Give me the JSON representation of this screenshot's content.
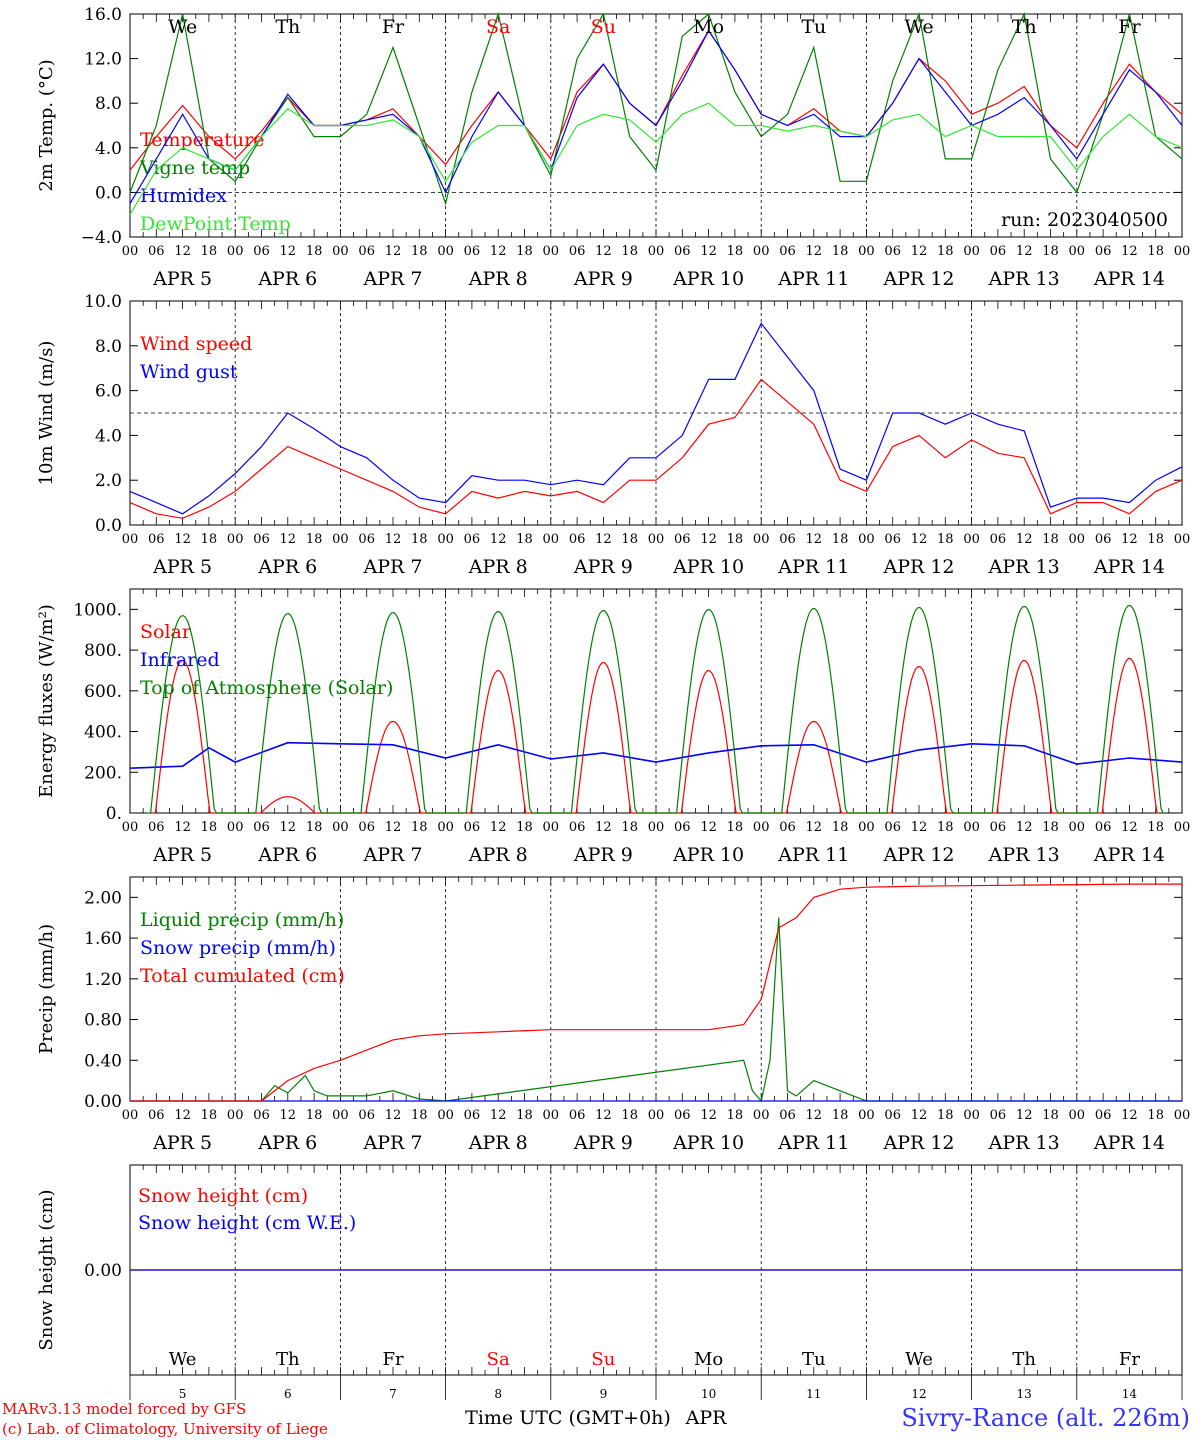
{
  "colors": {
    "red": "#ff0000",
    "green": "#008000",
    "blue": "#0000ff",
    "lime": "#33e633",
    "black": "#000000",
    "purple": "#800080"
  },
  "time_axis": {
    "date_labels": [
      "APR  5",
      "APR  6",
      "APR  7",
      "APR  8",
      "APR  9",
      "APR 10",
      "APR 11",
      "APR 12",
      "APR 13",
      "APR 14"
    ],
    "hour_labels": [
      "00",
      "06",
      "12",
      "18"
    ],
    "hour_end_label": "00",
    "day_names": [
      {
        "text": "We",
        "color": "#000000"
      },
      {
        "text": "Th",
        "color": "#000000"
      },
      {
        "text": "Fr",
        "color": "#000000"
      },
      {
        "text": "Sa",
        "color": "#ff0000"
      },
      {
        "text": "Su",
        "color": "#ff0000"
      },
      {
        "text": "Mo",
        "color": "#000000"
      },
      {
        "text": "Tu",
        "color": "#000000"
      },
      {
        "text": "We",
        "color": "#000000"
      },
      {
        "text": "Th",
        "color": "#000000"
      },
      {
        "text": "Fr",
        "color": "#000000"
      }
    ],
    "day_numbers": [
      "5",
      "6",
      "7",
      "8",
      "9",
      "10",
      "11",
      "12",
      "13",
      "14"
    ],
    "xlabel": "Time UTC (GMT+0h)",
    "month": "APR"
  },
  "footer": {
    "model_line": "MARv3.13 model forced by GFS",
    "lab_line": "(c) Lab. of Climatology, University of Liege",
    "station": "Sivry-Rance (alt. 226m)"
  },
  "chart_data": [
    {
      "type": "line",
      "ylabel": "2m Temp. (°C)",
      "ylim": [
        -4.0,
        16.0
      ],
      "yticks": [
        "16.0",
        "12.0",
        "8.0",
        "4.0",
        "0.0",
        "−4.0"
      ],
      "ytick_values": [
        16,
        12,
        8,
        4,
        0,
        -4
      ],
      "reference_line": 0,
      "annotation": "run: 2023040500",
      "x_unit": "hours since APR 5 00 UTC",
      "series": [
        {
          "name": "Temperature",
          "color": "#ff0000",
          "x": [
            0,
            6,
            12,
            18,
            24,
            30,
            36,
            42,
            48,
            54,
            60,
            66,
            72,
            78,
            84,
            90,
            96,
            102,
            108,
            114,
            120,
            126,
            132,
            138,
            144,
            150,
            156,
            162,
            168,
            174,
            180,
            186,
            192,
            198,
            204,
            210,
            216,
            222,
            228,
            234,
            240
          ],
          "values": [
            2,
            5,
            7.8,
            5,
            3,
            5.5,
            8.5,
            6,
            6,
            6.5,
            7.5,
            5,
            2.5,
            6,
            9,
            6,
            3,
            9,
            11.5,
            8,
            6,
            10.5,
            14.5,
            11,
            7,
            6,
            7.5,
            5.5,
            5,
            8,
            12,
            10,
            7,
            8,
            9.5,
            6,
            4,
            8,
            11.5,
            9,
            7
          ]
        },
        {
          "name": "Vigne temp",
          "color": "#008000",
          "x": [
            0,
            6,
            12,
            18,
            24,
            30,
            36,
            42,
            48,
            54,
            60,
            66,
            72,
            78,
            84,
            90,
            96,
            102,
            108,
            114,
            120,
            126,
            132,
            138,
            144,
            150,
            156,
            162,
            168,
            174,
            180,
            186,
            192,
            198,
            204,
            210,
            216,
            222,
            228,
            234,
            240
          ],
          "values": [
            0,
            6,
            16,
            3,
            1,
            5,
            8.5,
            5,
            5,
            7,
            13,
            6,
            -1,
            9,
            16,
            6,
            1.5,
            12,
            16,
            5,
            2,
            14,
            16,
            9,
            5,
            7,
            13,
            1,
            1,
            10,
            16,
            3,
            3,
            11,
            16,
            3,
            0,
            7,
            16,
            5,
            3
          ]
        },
        {
          "name": "Humidex",
          "color": "#0000ff",
          "x": [
            0,
            6,
            12,
            18,
            24,
            30,
            36,
            42,
            48,
            54,
            60,
            66,
            72,
            78,
            84,
            90,
            96,
            102,
            108,
            114,
            120,
            126,
            132,
            138,
            144,
            150,
            156,
            162,
            168,
            174,
            180,
            186,
            192,
            198,
            204,
            210,
            216,
            222,
            228,
            234,
            240
          ],
          "values": [
            -1,
            3,
            7,
            3,
            2,
            5,
            8.8,
            6,
            6,
            6.5,
            7,
            5,
            0,
            5,
            9,
            6,
            2,
            8.5,
            11.5,
            8,
            6,
            10,
            14.5,
            11,
            7,
            6,
            7,
            5,
            5,
            8,
            12,
            9,
            6,
            7,
            8.5,
            6,
            3,
            7,
            11,
            9,
            6
          ]
        },
        {
          "name": "DewPoint Temp",
          "color": "#33e633",
          "x": [
            0,
            6,
            12,
            18,
            24,
            30,
            36,
            42,
            48,
            54,
            60,
            66,
            72,
            78,
            84,
            90,
            96,
            102,
            108,
            114,
            120,
            126,
            132,
            138,
            144,
            150,
            156,
            162,
            168,
            174,
            180,
            186,
            192,
            198,
            204,
            210,
            216,
            222,
            228,
            234,
            240
          ],
          "values": [
            -2,
            2,
            4,
            3,
            2,
            5,
            7.5,
            6,
            6,
            6,
            6.5,
            5,
            1,
            4.5,
            6,
            6,
            2,
            6,
            7,
            6.5,
            4.5,
            7,
            8,
            6,
            6,
            5.5,
            6,
            5.5,
            5,
            6.5,
            7,
            5,
            6,
            5,
            5,
            5,
            2,
            5,
            7,
            5,
            4
          ]
        }
      ]
    },
    {
      "type": "line",
      "ylabel": "10m Wind (m/s)",
      "ylim": [
        0.0,
        10.0
      ],
      "yticks": [
        "10.0",
        "8.0",
        "6.0",
        "4.0",
        "2.0",
        "0.0"
      ],
      "ytick_values": [
        10,
        8,
        6,
        4,
        2,
        0
      ],
      "reference_line": 5,
      "x_unit": "hours since APR 5 00 UTC",
      "series": [
        {
          "name": "Wind speed",
          "color": "#ff0000",
          "x": [
            0,
            6,
            12,
            18,
            24,
            30,
            36,
            42,
            48,
            54,
            60,
            66,
            72,
            78,
            84,
            90,
            96,
            102,
            108,
            114,
            120,
            126,
            132,
            138,
            144,
            150,
            156,
            162,
            168,
            174,
            180,
            186,
            192,
            198,
            204,
            210,
            216,
            222,
            228,
            234,
            240
          ],
          "values": [
            1,
            0.5,
            0.3,
            0.8,
            1.5,
            2.5,
            3.5,
            3,
            2.5,
            2,
            1.5,
            0.8,
            0.5,
            1.5,
            1.2,
            1.5,
            1.3,
            1.5,
            1,
            2,
            2,
            3,
            4.5,
            4.8,
            6.5,
            5.5,
            4.5,
            2,
            1.5,
            3.5,
            4,
            3,
            3.8,
            3.2,
            3,
            0.5,
            1,
            1,
            0.5,
            1.5,
            2
          ]
        },
        {
          "name": "Wind gust",
          "color": "#0000ff",
          "x": [
            0,
            6,
            12,
            18,
            24,
            30,
            36,
            42,
            48,
            54,
            60,
            66,
            72,
            78,
            84,
            90,
            96,
            102,
            108,
            114,
            120,
            126,
            132,
            138,
            144,
            150,
            156,
            162,
            168,
            174,
            180,
            186,
            192,
            198,
            204,
            210,
            216,
            222,
            228,
            234,
            240
          ],
          "values": [
            1.5,
            1,
            0.5,
            1.3,
            2.3,
            3.5,
            5,
            4.3,
            3.5,
            3,
            2,
            1.2,
            1,
            2.2,
            2,
            2,
            1.8,
            2,
            1.8,
            3,
            3,
            4,
            6.5,
            6.5,
            9,
            7.5,
            6,
            2.5,
            2,
            5,
            5,
            4.5,
            5,
            4.5,
            4.2,
            0.8,
            1.2,
            1.2,
            1,
            2,
            2.6
          ]
        }
      ]
    },
    {
      "type": "line",
      "ylabel": "Energy fluxes (W/m²)",
      "ylim": [
        0,
        1100
      ],
      "yticks": [
        "1000.",
        "800.",
        "600.",
        "400.",
        "200.",
        "0."
      ],
      "ytick_values": [
        1000,
        800,
        600,
        400,
        200,
        0
      ],
      "x_unit": "hours since APR 5 00 UTC",
      "series": [
        {
          "name": "Solar",
          "color": "#ff0000",
          "peak_hours": [
            12,
            36,
            60,
            84,
            108,
            132,
            156,
            180,
            204,
            228
          ],
          "values": [
            750,
            80,
            450,
            700,
            740,
            700,
            450,
            720,
            750,
            760
          ]
        },
        {
          "name": "Infrared",
          "color": "#0000ff",
          "x": [
            0,
            12,
            18,
            24,
            36,
            48,
            60,
            72,
            84,
            96,
            108,
            120,
            132,
            144,
            156,
            168,
            180,
            192,
            204,
            216,
            228,
            240
          ],
          "values": [
            220,
            230,
            320,
            250,
            345,
            340,
            335,
            270,
            335,
            265,
            295,
            250,
            295,
            330,
            335,
            250,
            310,
            340,
            330,
            240,
            270,
            250
          ]
        },
        {
          "name": "Top of Atmosphere (Solar)",
          "color": "#008000",
          "peak_hours": [
            12,
            36,
            60,
            84,
            108,
            132,
            156,
            180,
            204,
            228
          ],
          "values": [
            970,
            980,
            985,
            990,
            995,
            1000,
            1005,
            1010,
            1015,
            1020
          ]
        }
      ]
    },
    {
      "type": "line",
      "ylabel": "Precip (mm/h)",
      "ylim": [
        0.0,
        2.2
      ],
      "yticks": [
        "2.00",
        "1.60",
        "1.20",
        "0.80",
        "0.40",
        "0.00"
      ],
      "ytick_values": [
        2.0,
        1.6,
        1.2,
        0.8,
        0.4,
        0.0
      ],
      "x_unit": "hours since APR 5 00 UTC",
      "series": [
        {
          "name": "Liquid precip (mm/h)",
          "color": "#008000",
          "x": [
            0,
            30,
            33,
            36,
            40,
            42,
            45,
            48,
            54,
            60,
            66,
            72,
            144,
            140,
            142,
            146,
            148,
            150,
            152,
            156,
            162,
            168,
            240
          ],
          "values": [
            0,
            0,
            0.15,
            0.08,
            0.25,
            0.1,
            0.05,
            0.05,
            0.05,
            0.1,
            0.02,
            0,
            0,
            0.4,
            0.1,
            0.4,
            1.8,
            0.1,
            0.05,
            0.2,
            0.1,
            0,
            0
          ]
        },
        {
          "name": "Snow precip (mm/h)",
          "color": "#0000ff",
          "x": [
            0,
            240
          ],
          "values": [
            0,
            0
          ]
        },
        {
          "name": "Total cumulated (cm)",
          "color": "#ff0000",
          "x": [
            0,
            30,
            36,
            42,
            48,
            54,
            60,
            66,
            72,
            84,
            96,
            108,
            120,
            132,
            140,
            144,
            148,
            152,
            156,
            162,
            168,
            180,
            204,
            228,
            240
          ],
          "values": [
            0,
            0,
            0.2,
            0.32,
            0.4,
            0.5,
            0.6,
            0.64,
            0.66,
            0.68,
            0.7,
            0.7,
            0.7,
            0.7,
            0.75,
            1.0,
            1.7,
            1.8,
            2.0,
            2.08,
            2.1,
            2.11,
            2.12,
            2.13,
            2.13
          ]
        }
      ]
    },
    {
      "type": "line",
      "ylabel": "Snow height (cm)",
      "ylim": [
        -1.0,
        1.0
      ],
      "yticks": [
        "0.00"
      ],
      "ytick_values": [
        0
      ],
      "x_unit": "hours since APR 5 00 UTC",
      "series": [
        {
          "name": "Snow height (cm)",
          "color": "#ff0000",
          "x": [
            0,
            240
          ],
          "values": [
            0,
            0
          ]
        },
        {
          "name": "Snow height (cm W.E.)",
          "color": "#0000ff",
          "x": [
            0,
            240
          ],
          "values": [
            0,
            0
          ]
        }
      ]
    }
  ]
}
